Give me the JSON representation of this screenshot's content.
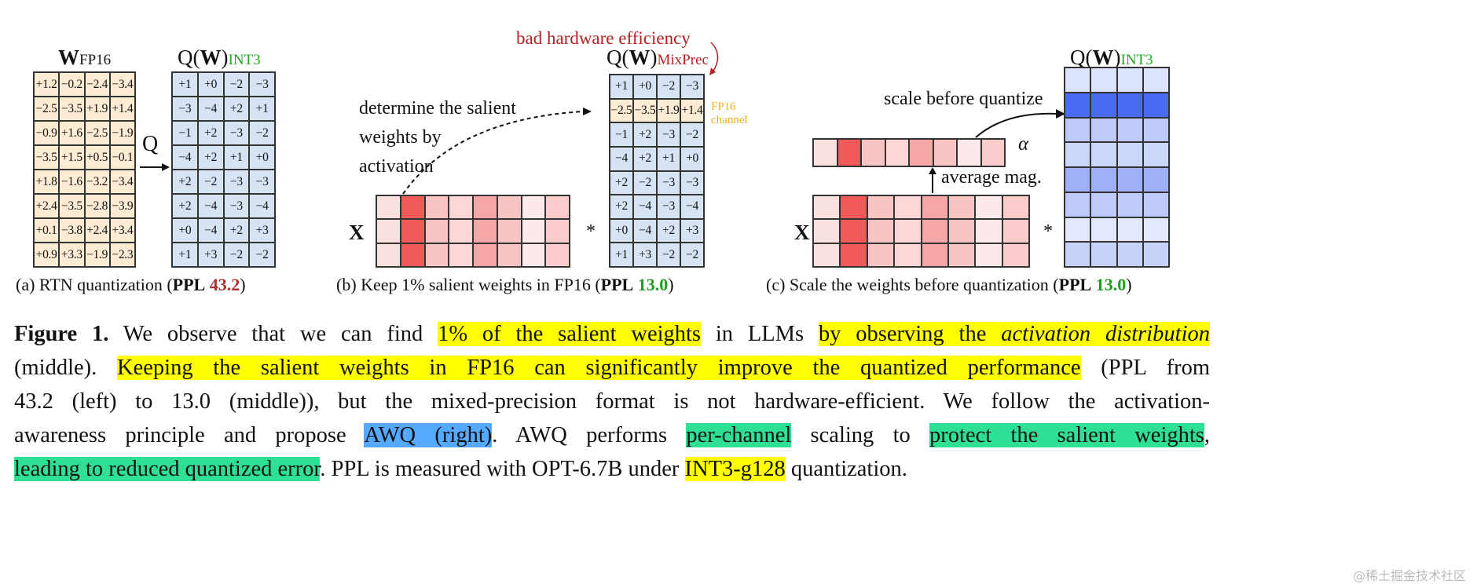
{
  "panel_a": {
    "w_title": {
      "main": "W",
      "sub": "FP16"
    },
    "q_title": {
      "pre": "Q(",
      "main": "W",
      "post": ")",
      "sub": "INT3"
    },
    "q_label": "Q",
    "w_matrix": [
      [
        "+1.2",
        "−0.2",
        "−2.4",
        "−3.4"
      ],
      [
        "−2.5",
        "−3.5",
        "+1.9",
        "+1.4"
      ],
      [
        "−0.9",
        "+1.6",
        "−2.5",
        "−1.9"
      ],
      [
        "−3.5",
        "+1.5",
        "+0.5",
        "−0.1"
      ],
      [
        "+1.8",
        "−1.6",
        "−3.2",
        "−3.4"
      ],
      [
        "+2.4",
        "−3.5",
        "−2.8",
        "−3.9"
      ],
      [
        "+0.1",
        "−3.8",
        "+2.4",
        "+3.4"
      ],
      [
        "+0.9",
        "+3.3",
        "−1.9",
        "−2.3"
      ]
    ],
    "q_matrix": [
      [
        "+1",
        "+0",
        "−2",
        "−3"
      ],
      [
        "−3",
        "−4",
        "+2",
        "+1"
      ],
      [
        "−1",
        "+2",
        "−3",
        "−2"
      ],
      [
        "−4",
        "+2",
        "+1",
        "+0"
      ],
      [
        "+2",
        "−2",
        "−3",
        "−3"
      ],
      [
        "+2",
        "−4",
        "−3",
        "−4"
      ],
      [
        "+0",
        "−4",
        "+2",
        "+3"
      ],
      [
        "+1",
        "+3",
        "−2",
        "−2"
      ]
    ],
    "caption": {
      "pre": "(a) RTN quantization (",
      "ppl": "PPL",
      "value": "43.2",
      "post": ")"
    }
  },
  "panel_b": {
    "annotation": [
      "determine the salient",
      "weights by",
      "activation"
    ],
    "bad_label": "bad hardware efficiency",
    "q_title": {
      "pre": "Q(",
      "main": "W",
      "post": ")",
      "sub": "MixPrec"
    },
    "fp16_label": [
      "FP16",
      "channel"
    ],
    "x_label": "X",
    "times": "*",
    "fp16_row": 1,
    "q_matrix": [
      [
        "+1",
        "+0",
        "−2",
        "−3"
      ],
      [
        "−2.5",
        "−3.5",
        "+1.9",
        "+1.4"
      ],
      [
        "−1",
        "+2",
        "−3",
        "−2"
      ],
      [
        "−4",
        "+2",
        "+1",
        "+0"
      ],
      [
        "+2",
        "−2",
        "−3",
        "−3"
      ],
      [
        "+2",
        "−4",
        "−3",
        "−4"
      ],
      [
        "+0",
        "−4",
        "+2",
        "+3"
      ],
      [
        "+1",
        "+3",
        "−2",
        "−2"
      ]
    ],
    "caption": {
      "pre": "(b) Keep 1% salient weights in FP16 (",
      "ppl": "PPL",
      "value": "13.0",
      "post": ")"
    }
  },
  "panel_c": {
    "scale_label": "scale before quantize",
    "alpha": "α",
    "avg_label": "average mag.",
    "x_label": "X",
    "times": "*",
    "q_title": {
      "pre": "Q(",
      "main": "W",
      "post": ")",
      "sub": "INT3"
    },
    "weight_row_intensity": [
      0.12,
      1.0,
      0.3,
      0.22,
      0.5,
      0.3,
      0.08,
      0.25
    ],
    "caption": {
      "pre": "(c) Scale the weights before quantization (",
      "ppl": "PPL",
      "value": "13.0",
      "post": ")"
    }
  },
  "activation_column_intensity": [
    0.12,
    1.0,
    0.3,
    0.18,
    0.5,
    0.3,
    0.06,
    0.25
  ],
  "colors": {
    "int3": "#22a822",
    "mixprec": "#b22222",
    "ppl_bad": "#b03030",
    "ppl_good": "#1e9e1e",
    "fp16": "#f0b020",
    "highlight_yellow": "#ffff00",
    "highlight_blue": "#55aaff",
    "highlight_green": "#2fdf94"
  },
  "figure_caption": {
    "label": "Figure 1.",
    "l1": [
      " We observe that we can find ",
      "1% of the salient weights",
      " in LLMs ",
      "by observing the ",
      "activation distribution"
    ],
    "l2": [
      "(middle). ",
      "Keeping the salient weights in FP16 can significantly improve the quantized performance",
      " (PPL from"
    ],
    "l3": [
      "43.2 (left) to 13.0 (middle)), but the mixed-precision format is not hardware-efficient. We follow the activation-"
    ],
    "l4": [
      "awareness principle and propose ",
      "AWQ (right)",
      ". AWQ performs ",
      "per-channel",
      " scaling to ",
      "protect the salient weights",
      ","
    ],
    "l5": [
      "leading to reduced quantized error",
      ". PPL is measured with OPT-6.7B under ",
      "INT3-g128",
      " quantization."
    ]
  },
  "watermark": "@稀土掘金技术社区"
}
